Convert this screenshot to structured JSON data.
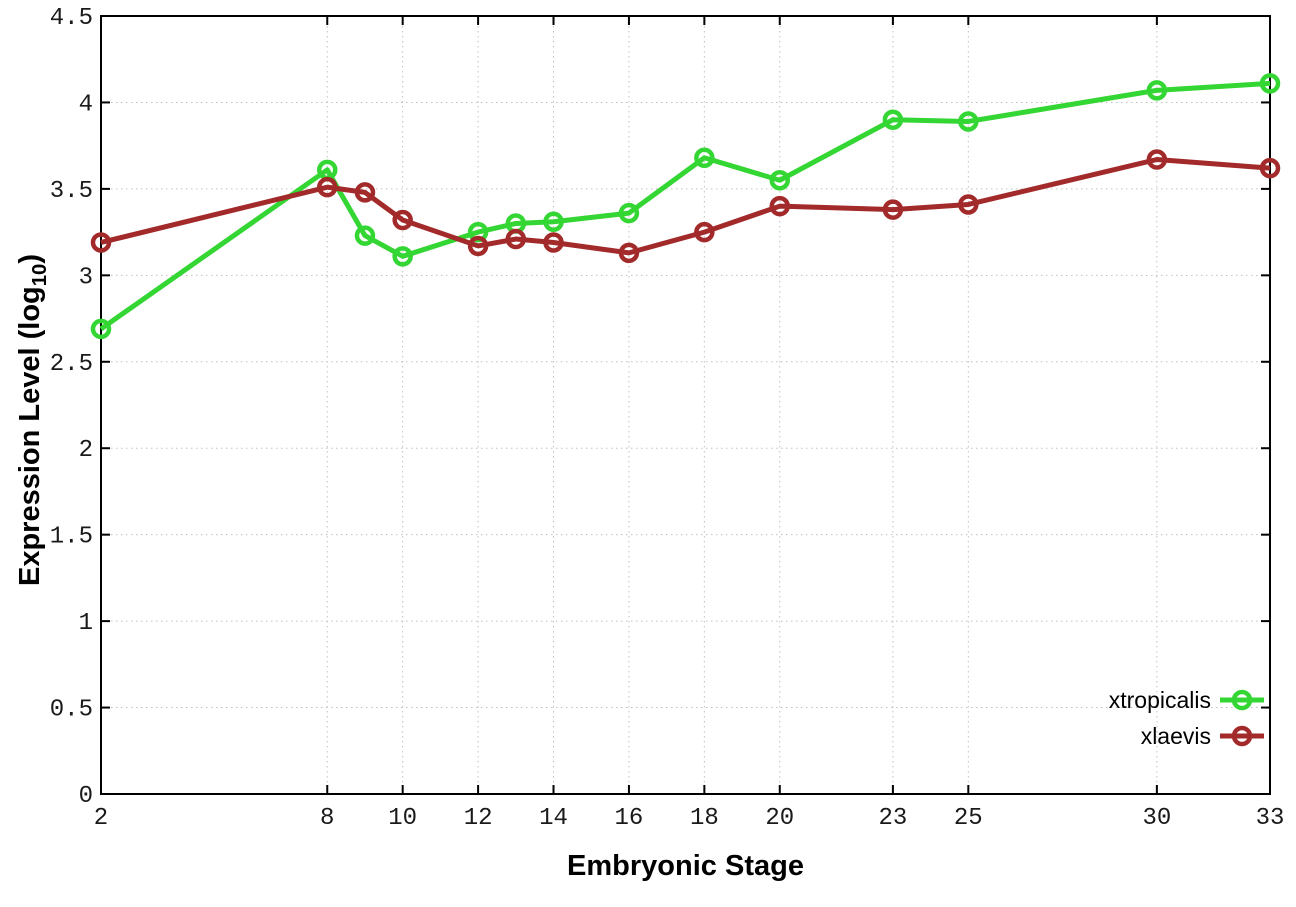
{
  "chart_data": {
    "type": "line",
    "title": "",
    "xlabel": "Embryonic Stage",
    "ylabel": "Expression Level (log10)",
    "ylabel_pre": "Expression Level (log",
    "ylabel_sub": "10",
    "ylabel_post": ")",
    "xlim": [
      2,
      33
    ],
    "ylim": [
      0,
      4.5
    ],
    "x_ticks": [
      2,
      8,
      10,
      12,
      14,
      16,
      18,
      20,
      23,
      25,
      30,
      33
    ],
    "y_ticks": [
      0,
      0.5,
      1,
      1.5,
      2,
      2.5,
      3,
      3.5,
      4,
      4.5
    ],
    "grid": true,
    "legend_position": "bottom-right-inside",
    "x": [
      2,
      8,
      9,
      10,
      12,
      13,
      14,
      16,
      18,
      20,
      23,
      25,
      30,
      33
    ],
    "series": [
      {
        "name": "xtropicalis",
        "color": "#33d633",
        "marker": "open-circle",
        "values": [
          2.69,
          3.61,
          3.23,
          3.11,
          3.25,
          3.3,
          3.31,
          3.36,
          3.68,
          3.55,
          3.9,
          3.89,
          4.07,
          4.11
        ]
      },
      {
        "name": "xlaevis",
        "color": "#a32a2a",
        "marker": "open-circle",
        "values": [
          3.19,
          3.51,
          3.48,
          3.32,
          3.17,
          3.21,
          3.19,
          3.13,
          3.25,
          3.4,
          3.38,
          3.41,
          3.67,
          3.62
        ]
      }
    ],
    "style": {
      "grid_color": "#c0c0c0",
      "border_color": "#000000",
      "tick_label_color": "#1a1a1a",
      "background": "#ffffff"
    }
  }
}
